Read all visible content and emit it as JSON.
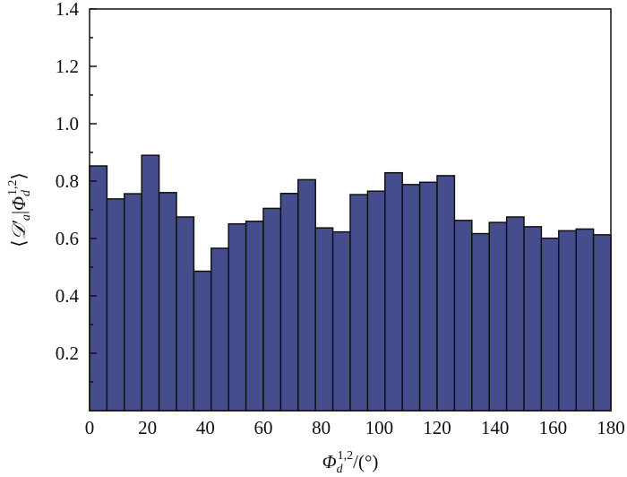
{
  "chart_data": {
    "type": "bar",
    "title": "",
    "xlabel": {
      "symbol": "Φ",
      "sub": "d",
      "sup": "1,2",
      "unit": "/(°)"
    },
    "ylabel": {
      "open": "⟨",
      "symbol": "𝒟′",
      "sub": "a",
      "bar": "|",
      "symbol2": "Φ",
      "sub2": "d",
      "sup2": "1,2",
      "close": "⟩"
    },
    "xlim": [
      0,
      180
    ],
    "ylim": [
      0,
      1.4
    ],
    "bin_width": 6,
    "xticks": [
      "0",
      "20",
      "40",
      "60",
      "80",
      "100",
      "120",
      "140",
      "160",
      "180"
    ],
    "yticks": [
      "0.2",
      "0.4",
      "0.6",
      "0.8",
      "1.0",
      "1.2",
      "1.4"
    ],
    "bin_starts": [
      0,
      6,
      12,
      18,
      24,
      30,
      36,
      42,
      48,
      54,
      60,
      66,
      72,
      78,
      84,
      90,
      96,
      102,
      108,
      114,
      120,
      126,
      132,
      138,
      144,
      150,
      156,
      162,
      168,
      174
    ],
    "values": [
      0.853,
      0.738,
      0.756,
      0.89,
      0.76,
      0.675,
      0.486,
      0.566,
      0.651,
      0.66,
      0.705,
      0.757,
      0.805,
      0.637,
      0.623,
      0.753,
      0.765,
      0.829,
      0.788,
      0.796,
      0.819,
      0.663,
      0.617,
      0.656,
      0.675,
      0.641,
      0.601,
      0.627,
      0.633,
      0.613
    ],
    "grid": false,
    "bar_color": "#454d8c",
    "edge_color": "#111111"
  }
}
